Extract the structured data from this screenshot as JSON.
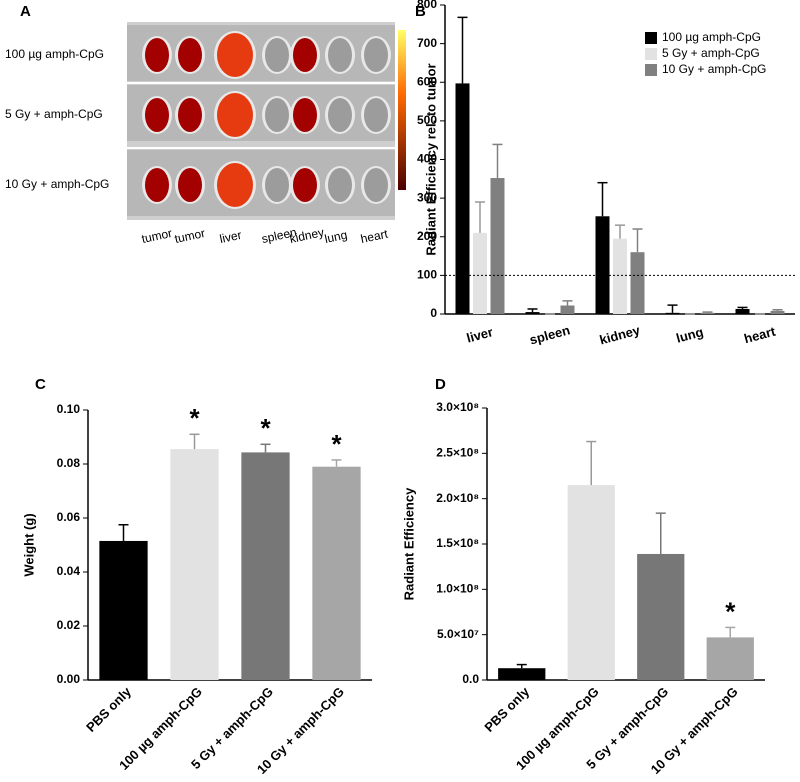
{
  "chart_data": [
    {
      "type": "image",
      "panel": "A",
      "rows": [
        "100 µg amph-CpG",
        "5 Gy + amph-CpG",
        "10 Gy + amph-CpG"
      ],
      "columns": [
        "tumor",
        "tumor",
        "liver",
        "spleen",
        "kidney",
        "lung",
        "heart"
      ]
    },
    {
      "type": "bar",
      "panel": "B",
      "y_label": "Radiant Efficiency rel. to tumor",
      "categories": [
        "liver",
        "spleen",
        "kidney",
        "lung",
        "heart"
      ],
      "series": [
        {
          "name": "100 µg amph-CpG",
          "color": "#000000",
          "values": [
            597,
            5,
            253,
            3,
            13
          ],
          "errors": [
            171,
            8,
            87,
            20,
            4
          ]
        },
        {
          "name": "5 Gy + amph-CpG",
          "color": "#e2e2e2",
          "values": [
            210,
            0,
            195,
            0,
            0
          ],
          "errors": [
            80,
            0,
            35,
            0,
            0
          ]
        },
        {
          "name": "10 Gy + amph-CpG",
          "color": "#808080",
          "values": [
            352,
            22,
            160,
            3,
            8
          ],
          "errors": [
            87,
            12,
            60,
            2,
            3
          ]
        }
      ],
      "reference_line": 100,
      "ylim": [
        0,
        800
      ],
      "yticks": [
        0,
        100,
        200,
        300,
        400,
        500,
        600,
        700,
        800
      ],
      "legend": "top-right"
    },
    {
      "type": "bar",
      "panel": "C",
      "y_label": "Weight (g)",
      "categories": [
        "PBS only",
        "100 µg amph-CpG",
        "5 Gy + amph-CpG",
        "10 Gy + amph-CpG"
      ],
      "values": [
        0.0515,
        0.0855,
        0.0843,
        0.079
      ],
      "errors": [
        0.006,
        0.0055,
        0.003,
        0.0025
      ],
      "colors": [
        "#000000",
        "#e2e2e2",
        "#777777",
        "#a6a6a6"
      ],
      "significance": [
        null,
        "*",
        "*",
        "*"
      ],
      "ylim": [
        0,
        0.1
      ],
      "yticks": [
        {
          "value": 0,
          "label": "0.00"
        },
        {
          "value": 0.02,
          "label": "0.02"
        },
        {
          "value": 0.04,
          "label": "0.04"
        },
        {
          "value": 0.06,
          "label": "0.06"
        },
        {
          "value": 0.08,
          "label": "0.08"
        },
        {
          "value": 0.1,
          "label": "0.10"
        }
      ]
    },
    {
      "type": "bar",
      "panel": "D",
      "y_label": "Radiant Efficiency",
      "categories": [
        "PBS only",
        "100 µg amph-CpG",
        "5 Gy + amph-CpG",
        "10 Gy + amph-CpG"
      ],
      "values": [
        13000000,
        215000000,
        139000000,
        47000000
      ],
      "errors": [
        4000000,
        48000000,
        45000000,
        11000000
      ],
      "colors": [
        "#000000",
        "#e2e2e2",
        "#777777",
        "#a6a6a6"
      ],
      "significance": [
        null,
        null,
        null,
        "*"
      ],
      "ylim": [
        0,
        300000000
      ],
      "yticks": [
        {
          "value": 0,
          "label": "0.0"
        },
        {
          "value": 50000000,
          "label": "5.0×10⁷"
        },
        {
          "value": 100000000,
          "label": "1.0×10⁸"
        },
        {
          "value": 150000000,
          "label": "1.5×10⁸"
        },
        {
          "value": 200000000,
          "label": "2.0×10⁸"
        },
        {
          "value": 250000000,
          "label": "2.5×10⁸"
        },
        {
          "value": 300000000,
          "label": "3.0×10⁸"
        }
      ]
    }
  ]
}
